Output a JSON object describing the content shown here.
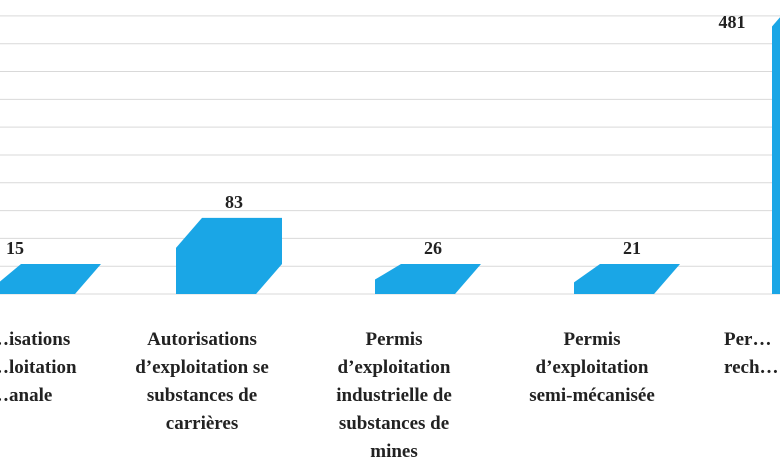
{
  "chart_data": {
    "type": "bar",
    "title": "",
    "xlabel": "",
    "ylabel": "",
    "ylim": [
      0,
      525
    ],
    "grid": true,
    "bar_color": "#1aa6e6",
    "grid_color": "#d9d9d9",
    "categories": [
      [
        "…isations",
        "…loitation",
        "…anale"
      ],
      [
        "Autorisations",
        "d’exploitation se",
        "substances de",
        "carrières"
      ],
      [
        "Permis",
        "d’exploitation",
        "industrielle de",
        "substances de",
        "mines"
      ],
      [
        "Permis",
        "d’exploitation",
        "semi-mécanisée"
      ],
      [
        "Per…",
        "rech…"
      ]
    ],
    "values": [
      15,
      83,
      26,
      21,
      481
    ],
    "value_labels": [
      "15",
      "83",
      "26",
      "21",
      "481"
    ]
  }
}
